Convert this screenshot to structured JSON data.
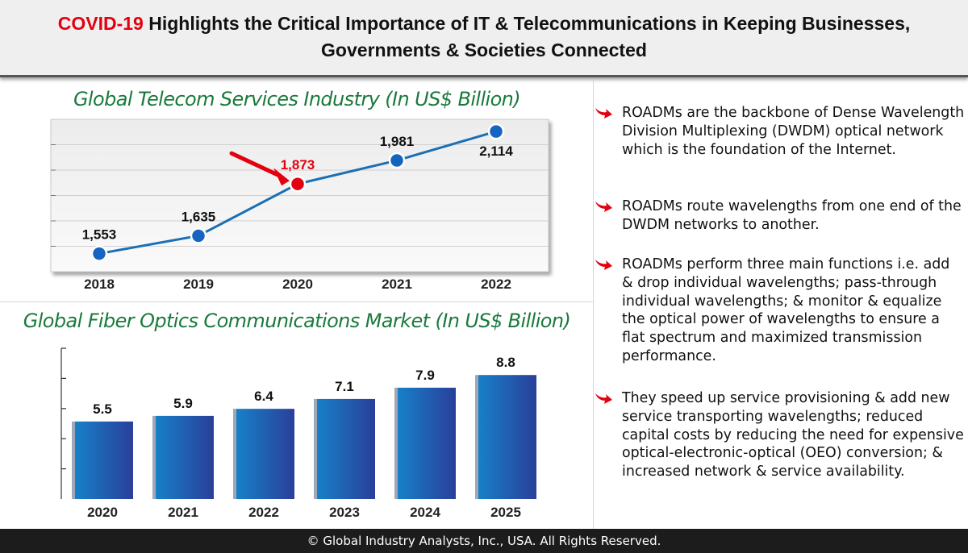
{
  "header": {
    "highlight": "COVID-19",
    "line1_rest": " Highlights the Critical Importance of IT & Telecommunications in Keeping Businesses,",
    "line2": "Governments & Societies Connected"
  },
  "chart_data": [
    {
      "type": "line",
      "title": "Global Telecom Services Industry (In US$ Billion)",
      "categories": [
        "2018",
        "2019",
        "2020",
        "2021",
        "2022"
      ],
      "values": [
        1553,
        1635,
        1873,
        1981,
        2114
      ],
      "value_labels": [
        "1,553",
        "1,635",
        "1,873",
        "1,981",
        "2,114"
      ],
      "highlight_index": 2,
      "ylim": [
        1470,
        2170
      ],
      "colors": {
        "line": "#1a6fb5",
        "point": "#1565c0",
        "highlight": "#e3000f"
      }
    },
    {
      "type": "bar",
      "title": "Global Fiber Optics Communications Market (In US$ Billion)",
      "categories": [
        "2020",
        "2021",
        "2022",
        "2023",
        "2024",
        "2025"
      ],
      "values": [
        5.5,
        5.9,
        6.4,
        7.1,
        7.9,
        8.8
      ],
      "value_labels": [
        "5.5",
        "5.9",
        "6.4",
        "7.1",
        "7.9",
        "8.8"
      ],
      "ylim": [
        0,
        10.7
      ],
      "colors": {
        "bar_light": "#1780c8",
        "bar_dark": "#2a3f9a",
        "bar_edge": "#9ea8b8"
      }
    }
  ],
  "bullets": [
    "ROADMs are the backbone of Dense Wavelength Division Multiplexing (DWDM) optical network which is the foundation of the Internet.",
    "ROADMs route wavelengths from one end of the DWDM networks to another.",
    "ROADMs perform three main functions i.e. add & drop individual wavelengths; pass-through individual wavelengths; & monitor & equalize the optical power of wavelengths to ensure a flat spectrum and maximized transmission performance.",
    "They speed up service provisioning & add new service transporting wavelengths; reduced capital costs by reducing the need for expensive optical-electronic-optical (OEO) conversion; & increased network & service availability."
  ],
  "footer": "© Global Industry Analysts, Inc., USA. All Rights Reserved."
}
